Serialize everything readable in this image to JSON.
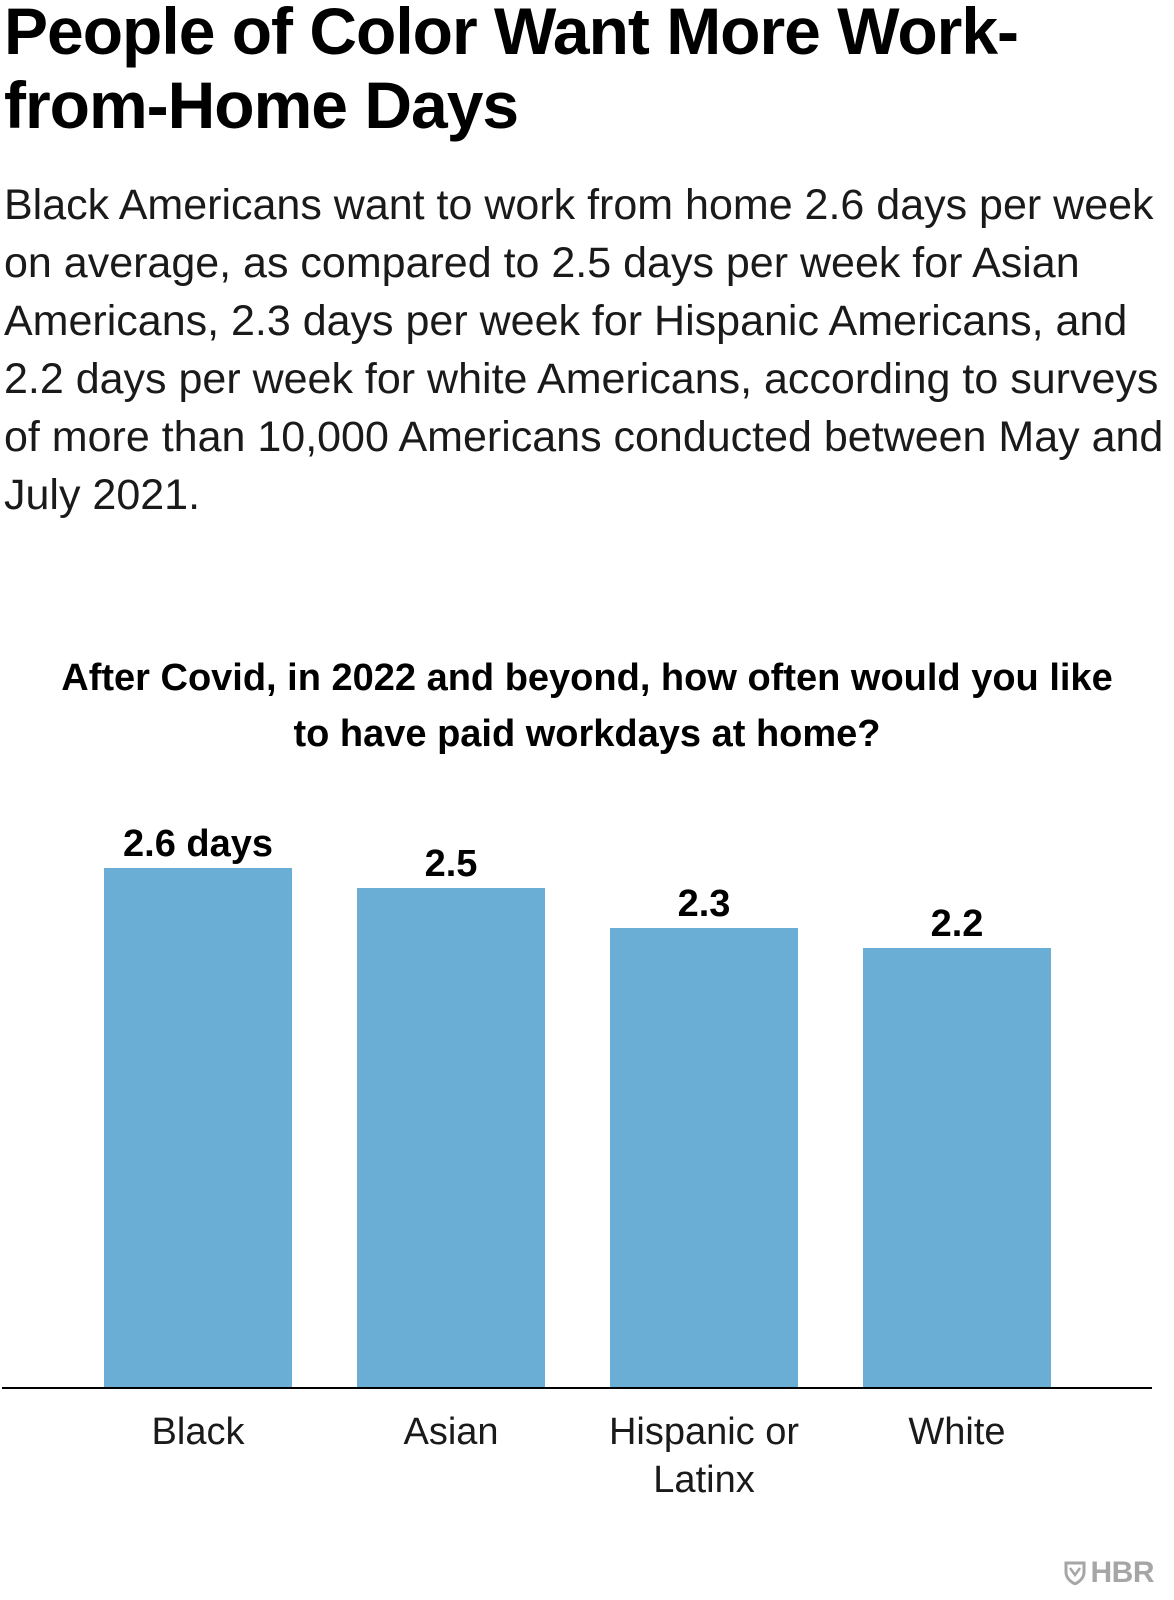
{
  "headline": "People of Color Want More Work-from-Home Days",
  "dek": "Black Americans want to work from home 2.6 days per week on average, as compared to 2.5 days per week for Asian Americans, 2.3 days per week for Hispanic Americans, and 2.2 days per week for white Americans, according to surveys of more than 10,000 Americans conducted between May and July 2021.",
  "colors": {
    "bar": "#6aaed6",
    "axis": "#000000",
    "logo": "#a6a6a6"
  },
  "logo": {
    "text": "HBR",
    "icon": "shield-icon"
  },
  "chart_data": {
    "type": "bar",
    "title": "After Covid, in 2022 and beyond, how often would you like to have paid workdays at home?",
    "categories": [
      "Black",
      "Asian",
      "Hispanic or Latinx",
      "White"
    ],
    "category_lines": [
      [
        "Black"
      ],
      [
        "Asian"
      ],
      [
        "Hispanic or",
        "Latinx"
      ],
      [
        "White"
      ]
    ],
    "values": [
      2.6,
      2.5,
      2.3,
      2.2
    ],
    "data_labels": [
      "2.6 days",
      "2.5",
      "2.3",
      "2.2"
    ],
    "xlabel": "",
    "ylabel": "",
    "ylim": [
      0,
      2.6
    ],
    "grid": false,
    "legend": "none"
  }
}
